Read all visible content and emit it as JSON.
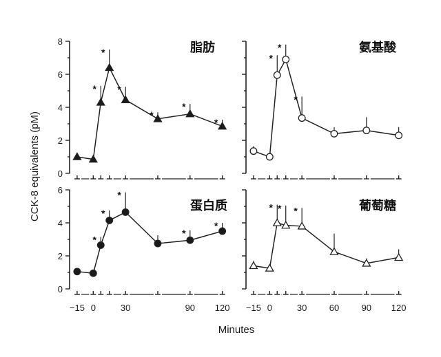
{
  "chart_data": {
    "type": "line",
    "ylabel": "CCK-8 equivalents (pM)",
    "xlabel": "Minutes",
    "panels": [
      {
        "id": "fat",
        "title": "脂肪",
        "marker": "triangle-filled",
        "x_ticks": [],
        "y_ticks": [
          "0",
          "2",
          "4",
          "6",
          "8"
        ],
        "xlim": [
          -22,
          126
        ],
        "ylim": [
          0,
          8
        ],
        "x": [
          -15,
          0,
          7,
          15,
          30,
          60,
          90,
          120
        ],
        "y": [
          1.0,
          0.85,
          4.3,
          6.4,
          4.45,
          3.3,
          3.6,
          2.85
        ],
        "err": [
          0.25,
          0.15,
          1.0,
          1.1,
          0.8,
          0.4,
          0.6,
          0.4
        ],
        "significant": [
          false,
          false,
          true,
          true,
          true,
          true,
          true,
          true
        ]
      },
      {
        "id": "amino-acid",
        "title": "氨基酸",
        "marker": "circle-open",
        "x_ticks": [],
        "y_ticks": [],
        "xlim": [
          -22,
          126
        ],
        "ylim": [
          0,
          8
        ],
        "x": [
          -15,
          0,
          7,
          15,
          30,
          60,
          90,
          120
        ],
        "y": [
          1.35,
          1.0,
          5.95,
          6.9,
          3.35,
          2.4,
          2.6,
          2.3
        ],
        "err": [
          0.3,
          0.2,
          1.2,
          0.9,
          1.3,
          0.4,
          0.8,
          0.5
        ],
        "significant": [
          false,
          false,
          true,
          true,
          true,
          false,
          false,
          false
        ]
      },
      {
        "id": "protein",
        "title": "蛋白质",
        "marker": "circle-filled",
        "x_ticks": [
          "−15",
          "0",
          "30",
          "90",
          "120"
        ],
        "y_ticks": [
          "0",
          "2",
          "4",
          "6"
        ],
        "xlim": [
          -22,
          126
        ],
        "ylim": [
          0,
          6
        ],
        "x": [
          -15,
          0,
          7,
          15,
          30,
          60,
          90,
          120
        ],
        "y": [
          1.05,
          0.95,
          2.65,
          4.15,
          4.65,
          2.75,
          2.95,
          3.5
        ],
        "err": [
          0.15,
          0.2,
          0.5,
          0.6,
          1.2,
          0.5,
          0.6,
          0.5
        ],
        "significant": [
          false,
          false,
          true,
          true,
          true,
          false,
          true,
          true
        ]
      },
      {
        "id": "glucose",
        "title": "葡萄糖",
        "marker": "triangle-open",
        "x_ticks": [
          "−15",
          "0",
          "30",
          "60",
          "90",
          "120"
        ],
        "y_ticks": [],
        "xlim": [
          -22,
          126
        ],
        "ylim": [
          0,
          6
        ],
        "x": [
          -15,
          0,
          7,
          15,
          30,
          60,
          90,
          120
        ],
        "y": [
          1.4,
          1.25,
          4.0,
          3.85,
          3.8,
          2.25,
          1.55,
          1.9
        ],
        "err": [
          0.3,
          0.2,
          1.1,
          1.2,
          1.1,
          1.1,
          0.3,
          0.5
        ],
        "significant": [
          false,
          false,
          true,
          true,
          true,
          false,
          false,
          false
        ]
      }
    ]
  }
}
